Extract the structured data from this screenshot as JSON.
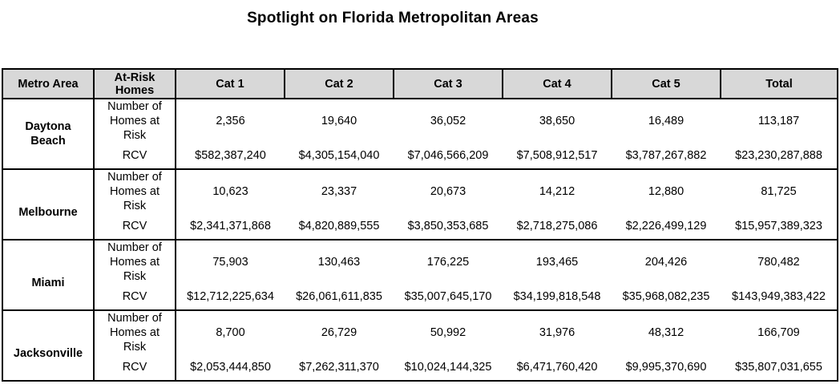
{
  "title": "Spotlight on Florida Metropolitan Areas",
  "headers": {
    "metro": "Metro Area",
    "risk_line1": "At-Risk",
    "risk_line2": "Homes",
    "cat1": "Cat 1",
    "cat2": "Cat 2",
    "cat3": "Cat 3",
    "cat4": "Cat 4",
    "cat5": "Cat 5",
    "total": "Total"
  },
  "labels": {
    "count_line1": "Number of",
    "count_line2": "Homes at",
    "count_line3": "Risk",
    "rcv": "RCV"
  },
  "rows": [
    {
      "metro_line1": "Daytona",
      "metro_line2": "Beach",
      "counts": [
        "2,356",
        "19,640",
        "36,052",
        "38,650",
        "16,489",
        "113,187"
      ],
      "rcv": [
        "$582,387,240",
        "$4,305,154,040",
        "$7,046,566,209",
        "$7,508,912,517",
        "$3,787,267,882",
        "$23,230,287,888"
      ]
    },
    {
      "metro_line1": "Melbourne",
      "metro_line2": "",
      "counts": [
        "10,623",
        "23,337",
        "20,673",
        "14,212",
        "12,880",
        "81,725"
      ],
      "rcv": [
        "$2,341,371,868",
        "$4,820,889,555",
        "$3,850,353,685",
        "$2,718,275,086",
        "$2,226,499,129",
        "$15,957,389,323"
      ]
    },
    {
      "metro_line1": "Miami",
      "metro_line2": "",
      "counts": [
        "75,903",
        "130,463",
        "176,225",
        "193,465",
        "204,426",
        "780,482"
      ],
      "rcv": [
        "$12,712,225,634",
        "$26,061,611,835",
        "$35,007,645,170",
        "$34,199,818,548",
        "$35,968,082,235",
        "$143,949,383,422"
      ]
    },
    {
      "metro_line1": "Jacksonville",
      "metro_line2": "",
      "counts": [
        "8,700",
        "26,729",
        "50,992",
        "31,976",
        "48,312",
        "166,709"
      ],
      "rcv": [
        "$2,053,444,850",
        "$7,262,311,370",
        "$10,024,144,325",
        "$6,471,760,420",
        "$9,995,370,690",
        "$35,807,031,655"
      ]
    }
  ]
}
